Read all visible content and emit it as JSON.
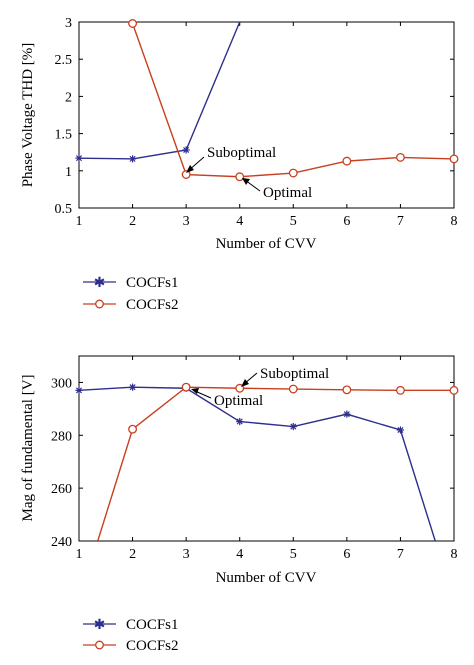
{
  "chart_data": [
    {
      "type": "line",
      "ylabel": "Phase Voltage THD [%]",
      "xlabel": "Number of CVV",
      "x": [
        1,
        2,
        3,
        4,
        5,
        6,
        7,
        8
      ],
      "xlim": [
        1,
        8
      ],
      "ylim": [
        0.5,
        3
      ],
      "xticks": [
        "1",
        "2",
        "3",
        "4",
        "5",
        "6",
        "7",
        "8"
      ],
      "yticks": [
        "0.5",
        "1",
        "1.5",
        "2",
        "2.5",
        "3"
      ],
      "ytick_values": [
        0.5,
        1,
        1.5,
        2,
        2.5,
        3
      ],
      "series": [
        {
          "name": "COCFs1",
          "color": "#2e2e8f",
          "marker": "asterisk",
          "points": [
            [
              1,
              1.17
            ],
            [
              2,
              1.16
            ],
            [
              3,
              1.28
            ],
            [
              4,
              3.0
            ]
          ]
        },
        {
          "name": "COCFs2",
          "color": "#c8401e",
          "marker": "circle",
          "points": [
            [
              2,
              2.98
            ],
            [
              3,
              0.95
            ],
            [
              4,
              0.92
            ],
            [
              5,
              0.97
            ],
            [
              6,
              1.13
            ],
            [
              7,
              1.18
            ],
            [
              8,
              1.16
            ]
          ]
        }
      ],
      "annotations": [
        {
          "text": "Suboptimal",
          "target": [
            3,
            0.95
          ]
        },
        {
          "text": "Optimal",
          "target": [
            4,
            0.92
          ]
        }
      ],
      "legend": [
        "COCFs1",
        "COCFs2"
      ],
      "legend_position": "below"
    },
    {
      "type": "line",
      "ylabel": "Mag of fundamental [V]",
      "xlabel": "Number of CVV",
      "x": [
        1,
        2,
        3,
        4,
        5,
        6,
        7,
        8
      ],
      "xlim": [
        1,
        8
      ],
      "ylim": [
        240,
        310
      ],
      "xticks": [
        "1",
        "2",
        "3",
        "4",
        "5",
        "6",
        "7",
        "8"
      ],
      "yticks": [
        "240",
        "260",
        "280",
        "300"
      ],
      "ytick_values": [
        240,
        260,
        280,
        300
      ],
      "series": [
        {
          "name": "COCFs1",
          "color": "#2e2e8f",
          "marker": "asterisk",
          "points": [
            [
              1,
              297
            ],
            [
              2,
              298.2
            ],
            [
              3,
              297.8
            ],
            [
              4,
              285.2
            ],
            [
              5,
              283.3
            ],
            [
              6,
              288
            ],
            [
              7,
              282
            ],
            [
              7.65,
              240
            ]
          ]
        },
        {
          "name": "COCFs2",
          "color": "#c8401e",
          "marker": "circle",
          "points": [
            [
              1.35,
              240
            ],
            [
              2,
              282.3
            ],
            [
              3,
              298.2
            ],
            [
              4,
              297.8
            ],
            [
              5,
              297.5
            ],
            [
              6,
              297.2
            ],
            [
              7,
              297
            ],
            [
              8,
              297
            ]
          ]
        }
      ],
      "annotations": [
        {
          "text": "Suboptimal",
          "target": [
            4,
            297.8
          ]
        },
        {
          "text": "Optimal",
          "target": [
            3,
            298.2
          ]
        }
      ],
      "legend": [
        "COCFs1",
        "COCFs2"
      ],
      "legend_position": "below"
    }
  ]
}
